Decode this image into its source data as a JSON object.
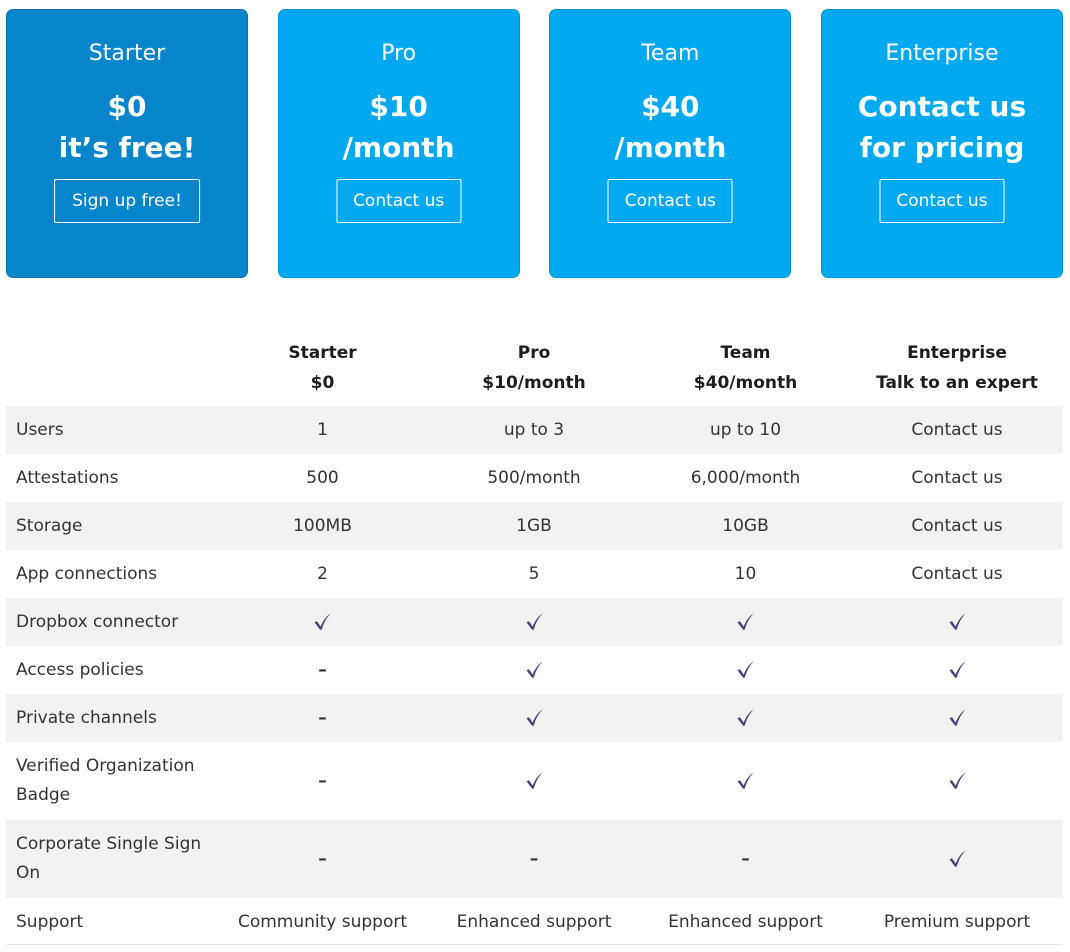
{
  "plans": [
    {
      "title": "Starter",
      "price_line1": "$0",
      "price_line2": "it’s free!",
      "button_label": "Sign up free!",
      "featured": true
    },
    {
      "title": "Pro",
      "price_line1": "$10",
      "price_line2": "/month",
      "button_label": "Contact us",
      "featured": false
    },
    {
      "title": "Team",
      "price_line1": "$40",
      "price_line2": "/month",
      "button_label": "Contact us",
      "featured": false
    },
    {
      "title": "Enterprise",
      "price_line1": "Contact us",
      "price_line2": "for pricing",
      "button_label": "Contact us",
      "featured": false
    }
  ],
  "table": {
    "headers": [
      {
        "name": "",
        "sub": ""
      },
      {
        "name": "Starter",
        "sub": "$0"
      },
      {
        "name": "Pro",
        "sub": "$10/month"
      },
      {
        "name": "Team",
        "sub": "$40/month"
      },
      {
        "name": "Enterprise",
        "sub": "Talk to an expert"
      }
    ],
    "rows": [
      {
        "feature": "Users",
        "values": [
          "1",
          "up to 3",
          "up to 10",
          "Contact us"
        ]
      },
      {
        "feature": "Attestations",
        "values": [
          "500",
          "500/month",
          "6,000/month",
          "Contact us"
        ]
      },
      {
        "feature": "Storage",
        "values": [
          "100MB",
          "1GB",
          "10GB",
          "Contact us"
        ]
      },
      {
        "feature": "App connections",
        "values": [
          "2",
          "5",
          "10",
          "Contact us"
        ]
      },
      {
        "feature": "Dropbox connector",
        "values": [
          "check",
          "check",
          "check",
          "check"
        ]
      },
      {
        "feature": "Access policies",
        "values": [
          "dash",
          "check",
          "check",
          "check"
        ]
      },
      {
        "feature": "Private channels",
        "values": [
          "dash",
          "check",
          "check",
          "check"
        ]
      },
      {
        "feature": "Verified Organization Badge",
        "values": [
          "dash",
          "check",
          "check",
          "check"
        ],
        "tall": true
      },
      {
        "feature": "Corporate Single Sign On",
        "values": [
          "dash",
          "dash",
          "dash",
          "check"
        ],
        "tall": true
      },
      {
        "feature": "Support",
        "values": [
          "Community support",
          "Enhanced support",
          "Enhanced support",
          "Premium support"
        ]
      }
    ]
  },
  "symbols": {
    "dash": "–",
    "check_icon": "checkmark-icon"
  },
  "colors": {
    "card": "#03A9F0",
    "card_featured": "#0785CB",
    "check": "#4B3D7A",
    "row_alt": "#F2F2F2"
  }
}
